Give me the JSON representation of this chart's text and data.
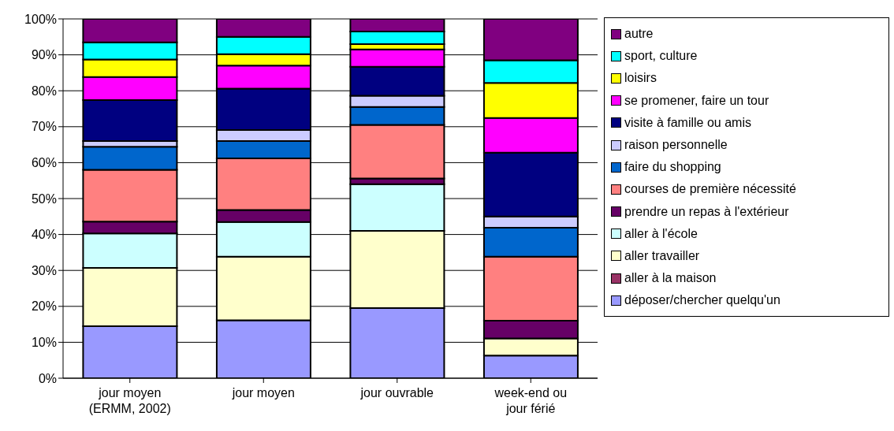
{
  "chart_data": {
    "type": "bar",
    "stacked": true,
    "categories": [
      "jour moyen\n(ERMM, 2002)",
      "jour moyen",
      "jour ouvrable",
      "week-end ou\njour férié"
    ],
    "series": [
      {
        "name": "déposer/chercher quelqu'un",
        "color": "#9999ff",
        "values": [
          14.5,
          16.1,
          19.5,
          6.3
        ]
      },
      {
        "name": "aller à la maison",
        "color": "#993366",
        "values": [
          0,
          0,
          0,
          0
        ]
      },
      {
        "name": "aller travailler",
        "color": "#ffffcc",
        "values": [
          16.2,
          17.7,
          21.5,
          4.8
        ]
      },
      {
        "name": "aller à l'école",
        "color": "#ccffff",
        "values": [
          9.6,
          9.7,
          13,
          0
        ]
      },
      {
        "name": "prendre un repas à l'extérieur",
        "color": "#660066",
        "values": [
          3.3,
          3.3,
          1.6,
          4.9
        ]
      },
      {
        "name": "courses de première nécessité",
        "color": "#ff8080",
        "values": [
          14.4,
          14.4,
          14.9,
          17.8
        ]
      },
      {
        "name": "faire du shopping",
        "color": "#0066cc",
        "values": [
          6.4,
          4.8,
          5,
          8.1
        ]
      },
      {
        "name": "raison personnelle",
        "color": "#ccccff",
        "values": [
          1.6,
          3.1,
          3.1,
          3.1
        ]
      },
      {
        "name": "visite à famille ou amis",
        "color": "#000080",
        "values": [
          11.4,
          11.5,
          8.1,
          17.8
        ]
      },
      {
        "name": "se promener, faire un tour",
        "color": "#ff00ff",
        "values": [
          6.4,
          6.4,
          4.8,
          9.6
        ]
      },
      {
        "name": "loisirs",
        "color": "#ffff00",
        "values": [
          4.9,
          3.2,
          1.5,
          9.8
        ]
      },
      {
        "name": "sport, culture",
        "color": "#00ffff",
        "values": [
          4.8,
          4.8,
          3.5,
          6.3
        ]
      },
      {
        "name": "autre",
        "color": "#800080",
        "values": [
          6.5,
          5,
          3.5,
          11.5
        ]
      }
    ],
    "ylim": [
      0,
      100
    ],
    "yticks": [
      {
        "value": 0,
        "label": "0%"
      },
      {
        "value": 10,
        "label": "10%"
      },
      {
        "value": 20,
        "label": "20%"
      },
      {
        "value": 30,
        "label": "30%"
      },
      {
        "value": 40,
        "label": "40%"
      },
      {
        "value": 50,
        "label": "50%"
      },
      {
        "value": 60,
        "label": "60%"
      },
      {
        "value": 70,
        "label": "70%"
      },
      {
        "value": 80,
        "label": "80%"
      },
      {
        "value": 90,
        "label": "90%"
      },
      {
        "value": 100,
        "label": "100%"
      }
    ],
    "grid": "y",
    "legend": "right"
  }
}
